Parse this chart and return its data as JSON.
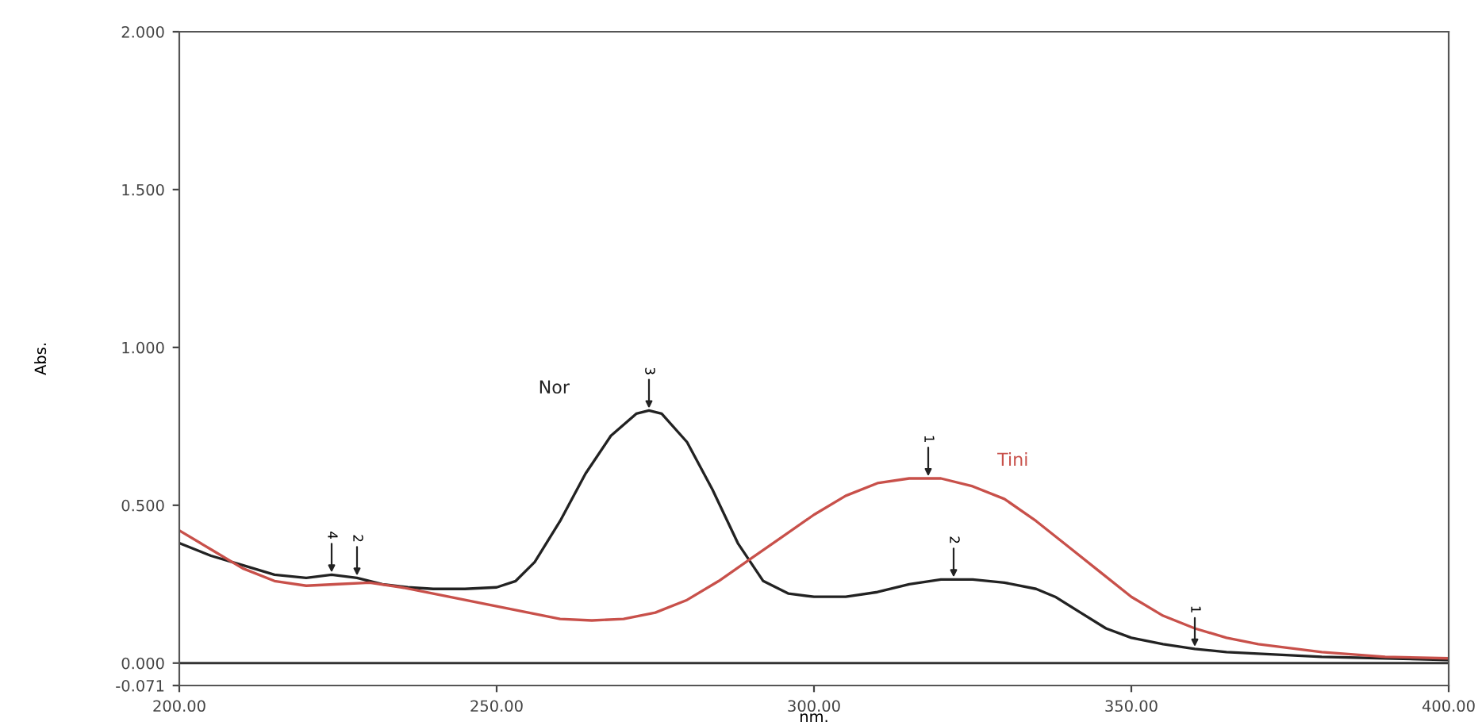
{
  "chart_data": {
    "type": "line",
    "xlabel": "nm.",
    "ylabel": "Abs.",
    "xlim": [
      200,
      400
    ],
    "ylim": [
      -0.071,
      2.0
    ],
    "xticks": [
      {
        "value": 200,
        "label": "200.00"
      },
      {
        "value": 250,
        "label": "250.00"
      },
      {
        "value": 300,
        "label": "300.00"
      },
      {
        "value": 350,
        "label": "350.00"
      },
      {
        "value": 400,
        "label": "400.00"
      }
    ],
    "yticks": [
      {
        "value": -0.071,
        "label": "-0.071"
      },
      {
        "value": 0,
        "label": "0.000"
      },
      {
        "value": 0.5,
        "label": "0.500"
      },
      {
        "value": 1.0,
        "label": "1.000"
      },
      {
        "value": 1.5,
        "label": "1.500"
      },
      {
        "value": 2.0,
        "label": "2.000"
      }
    ],
    "grid": false,
    "legend": false,
    "ref_lines": [
      {
        "axis": "y",
        "value": 0,
        "color": "#333333"
      }
    ],
    "series": [
      {
        "name": "Nor",
        "color": "#222222",
        "x": [
          200,
          205,
          210,
          215,
          220,
          224,
          228,
          232,
          236,
          240,
          245,
          250,
          253,
          256,
          260,
          264,
          268,
          272,
          274,
          276,
          280,
          284,
          288,
          292,
          296,
          300,
          305,
          310,
          315,
          320,
          325,
          330,
          335,
          338,
          342,
          346,
          350,
          355,
          360,
          365,
          370,
          380,
          390,
          400
        ],
        "values": [
          0.38,
          0.34,
          0.31,
          0.28,
          0.27,
          0.28,
          0.27,
          0.25,
          0.24,
          0.235,
          0.235,
          0.24,
          0.26,
          0.32,
          0.45,
          0.6,
          0.72,
          0.79,
          0.8,
          0.79,
          0.7,
          0.55,
          0.38,
          0.26,
          0.22,
          0.21,
          0.21,
          0.225,
          0.25,
          0.265,
          0.265,
          0.255,
          0.235,
          0.21,
          0.16,
          0.11,
          0.08,
          0.06,
          0.045,
          0.035,
          0.03,
          0.02,
          0.015,
          0.01
        ]
      },
      {
        "name": "Tini",
        "color": "#c8504a",
        "x": [
          200,
          205,
          210,
          215,
          220,
          225,
          230,
          235,
          240,
          245,
          250,
          255,
          260,
          265,
          270,
          275,
          280,
          285,
          290,
          295,
          300,
          305,
          310,
          315,
          320,
          325,
          330,
          335,
          340,
          345,
          350,
          355,
          360,
          365,
          370,
          380,
          390,
          400
        ],
        "values": [
          0.42,
          0.36,
          0.3,
          0.26,
          0.245,
          0.25,
          0.255,
          0.24,
          0.22,
          0.2,
          0.18,
          0.16,
          0.14,
          0.135,
          0.14,
          0.16,
          0.2,
          0.26,
          0.33,
          0.4,
          0.47,
          0.53,
          0.57,
          0.585,
          0.585,
          0.56,
          0.52,
          0.45,
          0.37,
          0.29,
          0.21,
          0.15,
          0.11,
          0.08,
          0.06,
          0.035,
          0.02,
          0.015
        ]
      }
    ],
    "annotations": [
      {
        "text": "4",
        "x": 224,
        "y": 0.28
      },
      {
        "text": "2",
        "x": 228,
        "y": 0.27
      },
      {
        "text": "3",
        "x": 274,
        "y": 0.8
      },
      {
        "text": "1",
        "x": 318,
        "y": 0.585
      },
      {
        "text": "2",
        "x": 322,
        "y": 0.265
      },
      {
        "text": "1",
        "x": 360,
        "y": 0.045
      }
    ]
  }
}
